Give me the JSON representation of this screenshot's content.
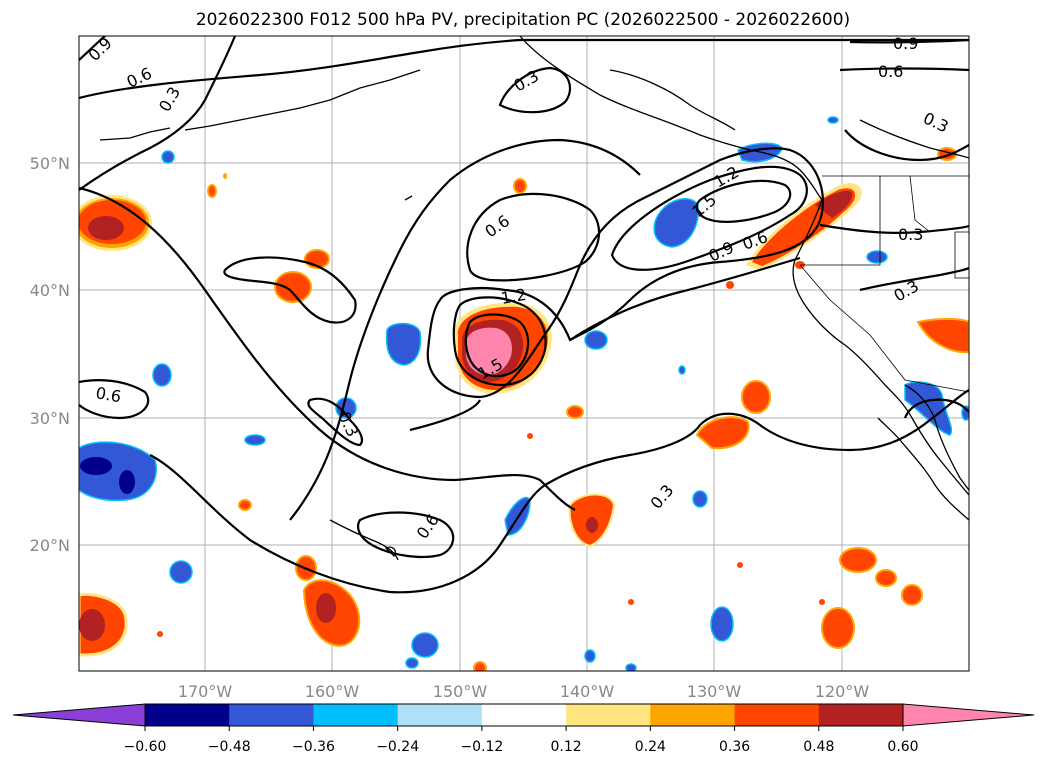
{
  "title": "2026022300 F012 500 hPa PV, precipitation PC (2026022500 - 2026022600)",
  "map": {
    "lon_labels": [
      "170°W",
      "160°W",
      "150°W",
      "140°W",
      "130°W",
      "120°W"
    ],
    "lat_labels": [
      "50°N",
      "40°N",
      "30°N",
      "20°N"
    ],
    "contour_labels": [
      "0.9",
      "0.6",
      "0.3",
      "0.3",
      "0.9",
      "0.6",
      "0.3",
      "1.2",
      "1.5",
      "0.9",
      "0.6",
      "0.6",
      "0.3",
      "0.3",
      "1.2",
      "1.5",
      "0.6",
      "0.3",
      "0.3",
      "0.6"
    ]
  },
  "colorbar": {
    "ticks": [
      "−0.60",
      "−0.48",
      "−0.36",
      "−0.24",
      "−0.12",
      "0.12",
      "0.24",
      "0.36",
      "0.48",
      "0.60"
    ],
    "colors": [
      "#8b3fd6",
      "#00008b",
      "#3358d6",
      "#00bfff",
      "#aee0f8",
      "#ffffff",
      "#ffe680",
      "#ffa500",
      "#ff4500",
      "#b22222",
      "#ff85ad"
    ]
  }
}
